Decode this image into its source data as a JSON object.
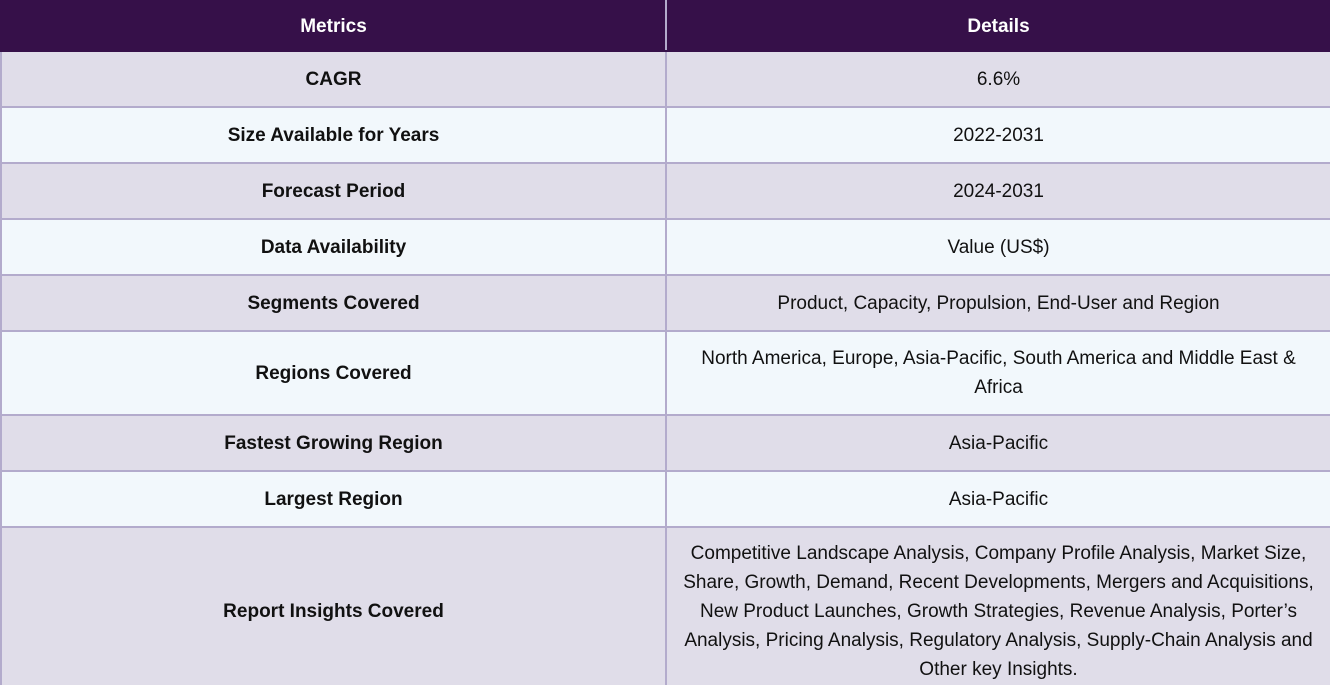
{
  "table": {
    "headers": [
      "Metrics",
      "Details"
    ],
    "rows": [
      {
        "metric": "CAGR",
        "detail": "6.6%"
      },
      {
        "metric": "Size Available for Years",
        "detail": "2022-2031"
      },
      {
        "metric": "Forecast Period",
        "detail": "2024-2031"
      },
      {
        "metric": "Data Availability",
        "detail": "Value (US$)"
      },
      {
        "metric": "Segments Covered",
        "detail": "Product, Capacity, Propulsion, End-User and Region"
      },
      {
        "metric": "Regions Covered",
        "detail": "North America, Europe, Asia-Pacific, South America and Middle East & Africa"
      },
      {
        "metric": "Fastest Growing Region",
        "detail": "Asia-Pacific"
      },
      {
        "metric": "Largest Region",
        "detail": "Asia-Pacific"
      },
      {
        "metric": "Report Insights Covered",
        "detail": "Competitive Landscape Analysis, Company Profile Analysis, Market Size, Share, Growth, Demand, Recent Developments, Mergers and Acquisitions, New Product Launches, Growth Strategies, Revenue Analysis, Porter’s Analysis, Pricing Analysis, Regulatory Analysis, Supply-Chain Analysis and Other key Insights."
      }
    ]
  }
}
